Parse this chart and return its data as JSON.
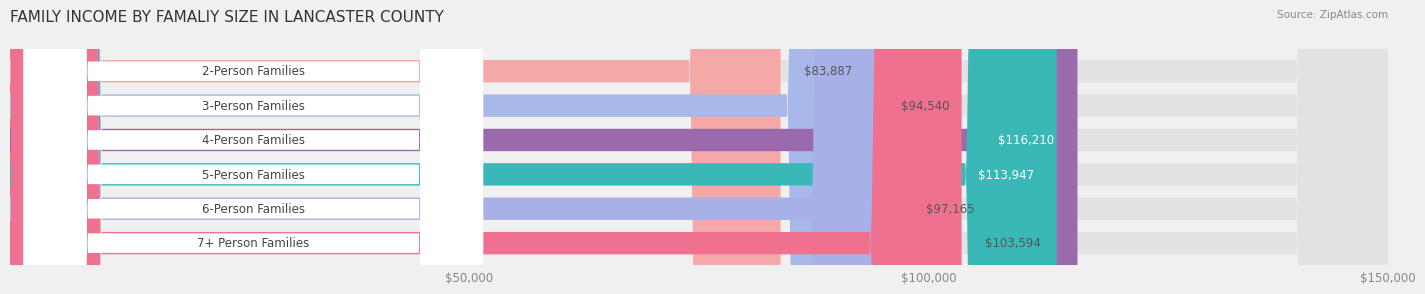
{
  "title": "FAMILY INCOME BY FAMALIY SIZE IN LANCASTER COUNTY",
  "source": "Source: ZipAtlas.com",
  "categories": [
    "2-Person Families",
    "3-Person Families",
    "4-Person Families",
    "5-Person Families",
    "6-Person Families",
    "7+ Person Families"
  ],
  "values": [
    83887,
    94540,
    116210,
    113947,
    97165,
    103594
  ],
  "bar_colors": [
    "#f4a9a8",
    "#a8b8e8",
    "#9b6aad",
    "#3ab8b8",
    "#a8b0e8",
    "#f07090"
  ],
  "label_colors": [
    "#555555",
    "#555555",
    "#ffffff",
    "#ffffff",
    "#555555",
    "#555555"
  ],
  "dot_colors": [
    "#f4a9a8",
    "#a8b8e8",
    "#9b6aad",
    "#3ab8b8",
    "#a8b0e8",
    "#f07090"
  ],
  "value_labels": [
    "$83,887",
    "$94,540",
    "$116,210",
    "$113,947",
    "$97,165",
    "$103,594"
  ],
  "xlim": [
    0,
    150000
  ],
  "xticks": [
    0,
    50000,
    100000,
    150000
  ],
  "xtick_labels": [
    "",
    "$50,000",
    "$100,000",
    "$150,000"
  ],
  "background_color": "#f0f0f0",
  "bar_background_color": "#e2e2e2",
  "bar_height": 0.65,
  "title_fontsize": 11,
  "label_fontsize": 8.5,
  "value_fontsize": 8.5,
  "tick_fontsize": 8.5,
  "source_fontsize": 7.5
}
